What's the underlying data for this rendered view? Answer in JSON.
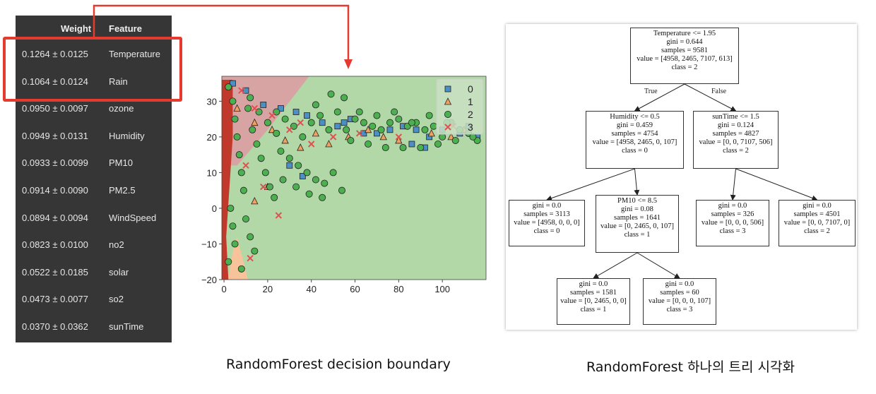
{
  "feature_importance": {
    "headers": {
      "weight": "Weight",
      "feature": "Feature"
    },
    "rows": [
      {
        "weight": "0.1264 ± 0.0125",
        "feature": "Temperature",
        "highlighted": true
      },
      {
        "weight": "0.1064 ± 0.0124",
        "feature": "Rain",
        "highlighted": true
      },
      {
        "weight": "0.0950 ± 0.0097",
        "feature": "ozone"
      },
      {
        "weight": "0.0949 ± 0.0131",
        "feature": "Humidity"
      },
      {
        "weight": "0.0933 ± 0.0099",
        "feature": "PM10"
      },
      {
        "weight": "0.0914 ± 0.0090",
        "feature": "PM2.5"
      },
      {
        "weight": "0.0894 ± 0.0094",
        "feature": "WindSpeed"
      },
      {
        "weight": "0.0823 ± 0.0100",
        "feature": "no2"
      },
      {
        "weight": "0.0522 ± 0.0185",
        "feature": "solar"
      },
      {
        "weight": "0.0473 ± 0.0077",
        "feature": "so2"
      },
      {
        "weight": "0.0370 ± 0.0362",
        "feature": "sunTime"
      }
    ]
  },
  "chart_data": {
    "type": "scatter",
    "xlim": [
      -1,
      120
    ],
    "ylim": [
      -20,
      37
    ],
    "x_ticks": [
      "0",
      "20",
      "40",
      "60",
      "80",
      "100"
    ],
    "y_ticks": [
      "30",
      "20",
      "10",
      "0",
      "−10",
      "−20"
    ],
    "legend": {
      "placement": "top-right",
      "entries": [
        "0",
        "1",
        "2",
        "3"
      ]
    },
    "region_colors": {
      "0": "#d8a3a3",
      "1": "#c0392b",
      "2": "#b2d8a8",
      "3": "#f7c39a"
    },
    "series": [
      {
        "name": "0",
        "marker": "square",
        "color": "#4c8fc4",
        "points": [
          [
            4,
            35
          ],
          [
            10,
            33
          ],
          [
            18,
            29
          ],
          [
            26,
            28
          ],
          [
            33,
            27
          ],
          [
            38,
            26
          ],
          [
            45,
            24
          ],
          [
            52,
            23
          ],
          [
            58,
            25
          ],
          [
            64,
            21
          ],
          [
            70,
            21
          ],
          [
            76,
            22
          ],
          [
            82,
            23
          ],
          [
            88,
            22
          ],
          [
            94,
            20
          ],
          [
            100,
            22
          ],
          [
            108,
            21
          ],
          [
            112,
            23
          ],
          [
            116,
            20
          ],
          [
            30,
            12
          ],
          [
            36,
            9
          ],
          [
            55,
            24
          ],
          [
            92,
            17
          ],
          [
            86,
            18
          ]
        ]
      },
      {
        "name": "1",
        "marker": "triangle",
        "color": "#f0a060",
        "points": [
          [
            6,
            28
          ],
          [
            14,
            24
          ],
          [
            22,
            22
          ],
          [
            28,
            19
          ],
          [
            35,
            17
          ],
          [
            42,
            21
          ],
          [
            48,
            18
          ],
          [
            57,
            20
          ],
          [
            66,
            22
          ],
          [
            73,
            20
          ],
          [
            80,
            19
          ],
          [
            95,
            21
          ],
          [
            104,
            20
          ],
          [
            110,
            22
          ],
          [
            14,
            2
          ],
          [
            20,
            6
          ]
        ]
      },
      {
        "name": "2",
        "marker": "circle",
        "color": "#4caf50",
        "points": [
          [
            2,
            34
          ],
          [
            4,
            30
          ],
          [
            5,
            25
          ],
          [
            6,
            20
          ],
          [
            7,
            15
          ],
          [
            8,
            10
          ],
          [
            9,
            5
          ],
          [
            3,
            0
          ],
          [
            4,
            -5
          ],
          [
            5,
            -10
          ],
          [
            2,
            -15
          ],
          [
            11,
            28
          ],
          [
            13,
            22
          ],
          [
            15,
            18
          ],
          [
            17,
            14
          ],
          [
            19,
            10
          ],
          [
            21,
            6
          ],
          [
            23,
            3
          ],
          [
            12,
            31
          ],
          [
            16,
            27
          ],
          [
            20,
            24
          ],
          [
            24,
            21
          ],
          [
            28,
            25
          ],
          [
            32,
            23
          ],
          [
            36,
            20
          ],
          [
            40,
            24
          ],
          [
            44,
            26
          ],
          [
            48,
            22
          ],
          [
            52,
            27
          ],
          [
            56,
            22
          ],
          [
            60,
            25
          ],
          [
            64,
            24
          ],
          [
            68,
            23
          ],
          [
            72,
            22
          ],
          [
            76,
            24
          ],
          [
            80,
            25
          ],
          [
            84,
            23
          ],
          [
            88,
            24
          ],
          [
            92,
            22
          ],
          [
            96,
            23
          ],
          [
            100,
            20
          ],
          [
            104,
            24
          ],
          [
            108,
            22
          ],
          [
            112,
            21
          ],
          [
            116,
            19
          ],
          [
            26,
            16
          ],
          [
            30,
            14
          ],
          [
            34,
            12
          ],
          [
            38,
            10
          ],
          [
            42,
            8
          ],
          [
            46,
            7
          ],
          [
            50,
            10
          ],
          [
            54,
            5
          ],
          [
            27,
            8
          ],
          [
            33,
            6
          ],
          [
            39,
            4
          ],
          [
            45,
            3
          ],
          [
            24,
            27
          ],
          [
            42,
            29
          ],
          [
            49,
            32
          ],
          [
            55,
            31
          ],
          [
            62,
            27
          ],
          [
            70,
            26
          ],
          [
            78,
            27
          ],
          [
            86,
            24
          ],
          [
            94,
            26
          ],
          [
            102,
            24
          ],
          [
            58,
            19
          ],
          [
            66,
            18
          ],
          [
            74,
            17
          ],
          [
            82,
            17
          ],
          [
            90,
            17
          ],
          [
            98,
            18
          ],
          [
            106,
            19
          ],
          [
            114,
            20
          ],
          [
            10,
            -3
          ],
          [
            12,
            -8
          ],
          [
            14,
            -12
          ],
          [
            8,
            -17
          ]
        ]
      },
      {
        "name": "3",
        "marker": "x",
        "color": "#e05050",
        "points": [
          [
            8,
            33
          ],
          [
            14,
            28
          ],
          [
            22,
            26
          ],
          [
            30,
            22
          ],
          [
            40,
            18
          ],
          [
            50,
            20
          ],
          [
            62,
            21
          ],
          [
            80,
            20
          ],
          [
            10,
            12
          ],
          [
            18,
            6
          ],
          [
            25,
            -2
          ],
          [
            12,
            -14
          ],
          [
            35,
            24
          ],
          [
            105,
            23
          ]
        ]
      }
    ]
  },
  "tree": {
    "nodes": [
      {
        "id": "root",
        "lines": [
          "Temperature <= 1.95",
          "gini = 0.644",
          "samples = 9581",
          "value = [4958, 2465, 7107, 613]",
          "class = 2"
        ]
      },
      {
        "id": "humidity",
        "lines": [
          "Humidity <= 0.5",
          "gini = 0.459",
          "samples = 4754",
          "value = [4958, 2465, 0, 107]",
          "class = 0"
        ]
      },
      {
        "id": "suntime",
        "lines": [
          "sunTime <= 1.5",
          "gini = 0.124",
          "samples = 4827",
          "value = [0, 0, 7107, 506]",
          "class = 2"
        ]
      },
      {
        "id": "leaf0",
        "lines": [
          "gini = 0.0",
          "samples = 3113",
          "value = [4958, 0, 0, 0]",
          "class = 0"
        ]
      },
      {
        "id": "pm10",
        "lines": [
          "PM10 <= 8.5",
          "gini = 0.08",
          "samples = 1641",
          "value = [0, 2465, 0, 107]",
          "class = 1"
        ]
      },
      {
        "id": "leaf3a",
        "lines": [
          "gini = 0.0",
          "samples = 326",
          "value = [0, 0, 0, 506]",
          "class = 3"
        ]
      },
      {
        "id": "leaf2",
        "lines": [
          "gini = 0.0",
          "samples = 4501",
          "value = [0, 0, 7107, 0]",
          "class = 2"
        ]
      },
      {
        "id": "leaf1",
        "lines": [
          "gini = 0.0",
          "samples = 1581",
          "value = [0, 2465, 0, 0]",
          "class = 1"
        ]
      },
      {
        "id": "leaf3b",
        "lines": [
          "gini = 0.0",
          "samples = 60",
          "value = [0, 0, 0, 107]",
          "class = 3"
        ]
      }
    ],
    "edge_labels": {
      "true": "True",
      "false": "False"
    }
  },
  "captions": {
    "boundary": "RandomForest decision boundary",
    "tree": "RandomForest 하나의 트리 시각화"
  },
  "colors": {
    "highlight": "#e53a2f",
    "table_bg": "#363636"
  }
}
